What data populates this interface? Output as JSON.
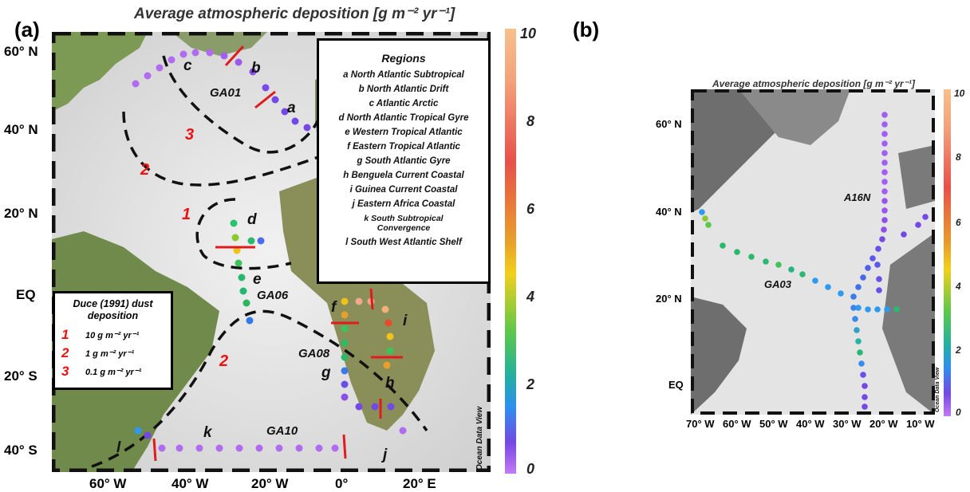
{
  "panel_a": {
    "label": "(a)",
    "title": "Average atmospheric deposition [g m⁻² yr⁻¹]",
    "lat_labels": [
      "60° N",
      "40° N",
      "20° N",
      "EQ",
      "20° S",
      "40° S"
    ],
    "lon_labels": [
      "60° W",
      "40° W",
      "20° W",
      "0°",
      "20° E"
    ],
    "colorbar": {
      "ticks": [
        "10",
        "8",
        "6",
        "4",
        "2",
        "0"
      ],
      "credit": "Ocean Data View"
    },
    "regions_box": {
      "title": "Regions",
      "items": [
        "a  North Atlantic Subtropical",
        "b  North Atlantic Drift",
        "c  Atlantic Arctic",
        "d  North Atlantic Tropical Gyre",
        "e  Western Tropical Atlantic",
        "f  Eastern Tropical Atlantic",
        "g  South Atlantic Gyre",
        "h  Benguela Current Coastal",
        "i  Guinea Current Coastal",
        "j  Eastern Africa Coastal",
        "k South Subtropical Convergence",
        "l  South West Atlantic Shelf"
      ]
    },
    "duce_box": {
      "title": "Duce (1991) dust deposition",
      "rows": [
        {
          "num": "1",
          "text": "10  g m⁻² yr⁻¹"
        },
        {
          "num": "2",
          "text": "1   g m⁻² yr⁻¹"
        },
        {
          "num": "3",
          "text": "0.1 g m⁻² yr⁻¹"
        }
      ]
    },
    "cruises": [
      "GA01",
      "GA06",
      "GA08",
      "GA10"
    ],
    "region_letters": [
      "a",
      "b",
      "c",
      "d",
      "e",
      "f",
      "g",
      "h",
      "i",
      "j",
      "k",
      "l"
    ],
    "duce_map_labels": [
      "1",
      "1",
      "2",
      "2",
      "3"
    ]
  },
  "panel_b": {
    "label": "(b)",
    "title": "Average atmospheric deposition [g m⁻² yr⁻¹]",
    "lat_labels": [
      "60° N",
      "40° N",
      "20° N",
      "EQ"
    ],
    "lon_labels": [
      "70° W",
      "60° W",
      "50° W",
      "40° W",
      "30° W",
      "20° W",
      "10° W"
    ],
    "colorbar": {
      "ticks": [
        "10",
        "8",
        "6",
        "4",
        "2",
        "0"
      ],
      "credit": "Ocean Data View"
    },
    "cruises": [
      "A16N",
      "GA03"
    ]
  },
  "colors": {
    "land": "#6f8f4c",
    "ocean_light": "#e6e6e6",
    "ocean_dark": "#bfbfbf",
    "red_line": "#e11b1b",
    "dash": "#111111"
  }
}
